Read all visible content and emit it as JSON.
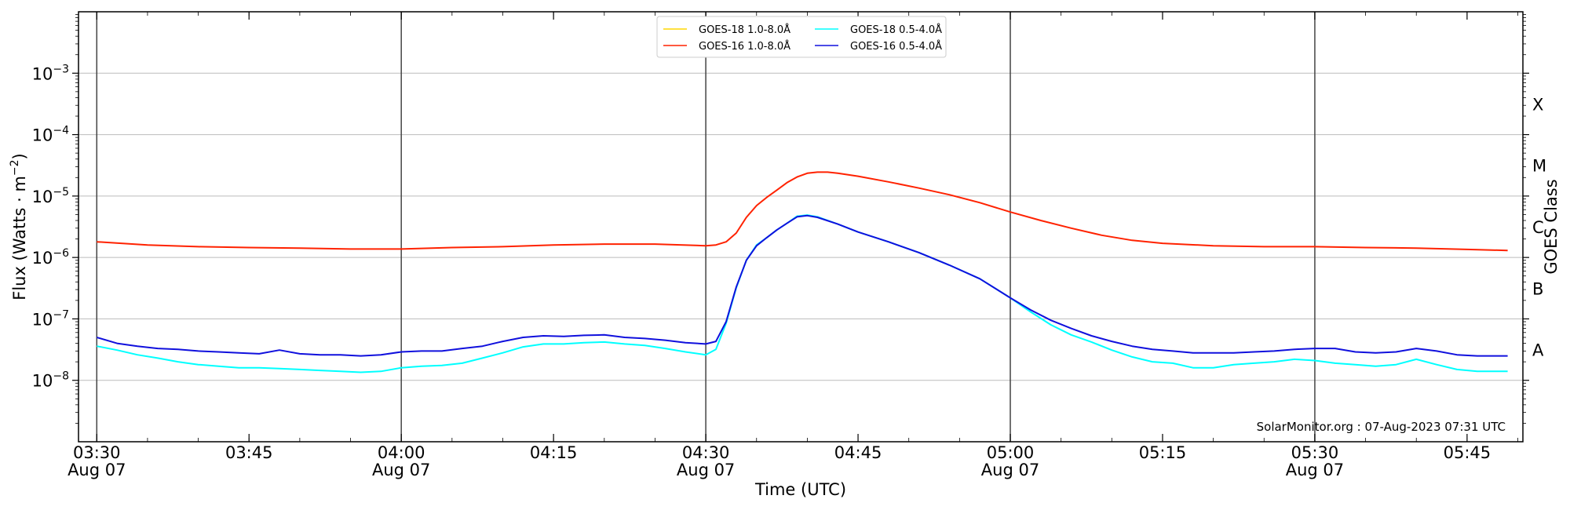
{
  "chart_data": {
    "type": "line",
    "title": "",
    "xlabel": "Time (UTC)",
    "ylabel_main": "Flux (Watts · m",
    "ylabel_exp": "−2",
    "ylabel_close": ")",
    "ylabel_right": "GOES Class",
    "y_scale": "log",
    "ylim": [
      1e-09,
      0.01
    ],
    "xlim_minutes": [
      "03:30",
      "05:50"
    ],
    "grid": "horizontal at decades",
    "legend_placement": "top-center",
    "x_ticks": [
      {
        "t": "03:30",
        "line1": "03:30",
        "line2": "Aug 07",
        "vline": true
      },
      {
        "t": "03:45",
        "line1": "03:45",
        "line2": "",
        "vline": false
      },
      {
        "t": "04:00",
        "line1": "04:00",
        "line2": "Aug 07",
        "vline": true
      },
      {
        "t": "04:15",
        "line1": "04:15",
        "line2": "",
        "vline": false
      },
      {
        "t": "04:30",
        "line1": "04:30",
        "line2": "Aug 07",
        "vline": true
      },
      {
        "t": "04:45",
        "line1": "04:45",
        "line2": "",
        "vline": false
      },
      {
        "t": "05:00",
        "line1": "05:00",
        "line2": "Aug 07",
        "vline": true
      },
      {
        "t": "05:15",
        "line1": "05:15",
        "line2": "",
        "vline": false
      },
      {
        "t": "05:30",
        "line1": "05:30",
        "line2": "Aug 07",
        "vline": true
      },
      {
        "t": "05:45",
        "line1": "05:45",
        "line2": "",
        "vline": false
      }
    ],
    "y_ticks": [
      {
        "value": 1e-08,
        "base": "10",
        "exp": "−8"
      },
      {
        "value": 1e-07,
        "base": "10",
        "exp": "−7"
      },
      {
        "value": 1e-06,
        "base": "10",
        "exp": "−6"
      },
      {
        "value": 1e-05,
        "base": "10",
        "exp": "−5"
      },
      {
        "value": 0.0001,
        "base": "10",
        "exp": "−4"
      },
      {
        "value": 0.001,
        "base": "10",
        "exp": "−3"
      }
    ],
    "goes_classes": [
      {
        "label": "A",
        "value": 1e-08
      },
      {
        "label": "B",
        "value": 1e-07
      },
      {
        "label": "C",
        "value": 1e-06
      },
      {
        "label": "M",
        "value": 1e-05
      },
      {
        "label": "X",
        "value": 0.0001
      }
    ],
    "series": [
      {
        "name": "GOES-18 1.0-8.0Å",
        "color": "#FFD700",
        "points": []
      },
      {
        "name": "GOES-16 1.0-8.0Å",
        "color": "#FF2200",
        "points": [
          [
            "03:30",
            1.8e-06
          ],
          [
            "03:35",
            1.6e-06
          ],
          [
            "03:40",
            1.5e-06
          ],
          [
            "03:45",
            1.45e-06
          ],
          [
            "03:50",
            1.42e-06
          ],
          [
            "03:55",
            1.37e-06
          ],
          [
            "04:00",
            1.37e-06
          ],
          [
            "04:05",
            1.45e-06
          ],
          [
            "04:10",
            1.5e-06
          ],
          [
            "04:15",
            1.6e-06
          ],
          [
            "04:20",
            1.65e-06
          ],
          [
            "04:25",
            1.65e-06
          ],
          [
            "04:30",
            1.55e-06
          ],
          [
            "04:31",
            1.6e-06
          ],
          [
            "04:32",
            1.8e-06
          ],
          [
            "04:33",
            2.5e-06
          ],
          [
            "04:34",
            4.5e-06
          ],
          [
            "04:35",
            7e-06
          ],
          [
            "04:36",
            9.5e-06
          ],
          [
            "04:37",
            1.25e-05
          ],
          [
            "04:38",
            1.65e-05
          ],
          [
            "04:39",
            2.05e-05
          ],
          [
            "04:40",
            2.35e-05
          ],
          [
            "04:41",
            2.45e-05
          ],
          [
            "04:42",
            2.45e-05
          ],
          [
            "04:43",
            2.35e-05
          ],
          [
            "04:45",
            2.1e-05
          ],
          [
            "04:48",
            1.7e-05
          ],
          [
            "04:51",
            1.35e-05
          ],
          [
            "04:54",
            1.05e-05
          ],
          [
            "04:57",
            7.8e-06
          ],
          [
            "05:00",
            5.5e-06
          ],
          [
            "05:03",
            4e-06
          ],
          [
            "05:06",
            3e-06
          ],
          [
            "05:09",
            2.3e-06
          ],
          [
            "05:12",
            1.9e-06
          ],
          [
            "05:15",
            1.7e-06
          ],
          [
            "05:20",
            1.55e-06
          ],
          [
            "05:25",
            1.5e-06
          ],
          [
            "05:30",
            1.5e-06
          ],
          [
            "05:35",
            1.45e-06
          ],
          [
            "05:40",
            1.42e-06
          ],
          [
            "05:45",
            1.35e-06
          ],
          [
            "05:49",
            1.3e-06
          ]
        ]
      },
      {
        "name": "GOES-18 0.5-4.0Å",
        "color": "#00FFFF",
        "points": [
          [
            "03:30",
            3.6e-08
          ],
          [
            "03:32",
            3.1e-08
          ],
          [
            "03:34",
            2.6e-08
          ],
          [
            "03:36",
            2.3e-08
          ],
          [
            "03:38",
            2e-08
          ],
          [
            "03:40",
            1.8e-08
          ],
          [
            "03:42",
            1.7e-08
          ],
          [
            "03:44",
            1.6e-08
          ],
          [
            "03:46",
            1.6e-08
          ],
          [
            "03:48",
            1.55e-08
          ],
          [
            "03:50",
            1.5e-08
          ],
          [
            "03:52",
            1.45e-08
          ],
          [
            "03:54",
            1.4e-08
          ],
          [
            "03:56",
            1.35e-08
          ],
          [
            "03:58",
            1.4e-08
          ],
          [
            "04:00",
            1.6e-08
          ],
          [
            "04:02",
            1.7e-08
          ],
          [
            "04:04",
            1.75e-08
          ],
          [
            "04:06",
            1.9e-08
          ],
          [
            "04:08",
            2.3e-08
          ],
          [
            "04:10",
            2.8e-08
          ],
          [
            "04:12",
            3.5e-08
          ],
          [
            "04:14",
            3.9e-08
          ],
          [
            "04:16",
            3.9e-08
          ],
          [
            "04:18",
            4.1e-08
          ],
          [
            "04:20",
            4.2e-08
          ],
          [
            "04:22",
            3.9e-08
          ],
          [
            "04:24",
            3.7e-08
          ],
          [
            "04:26",
            3.3e-08
          ],
          [
            "04:28",
            2.9e-08
          ],
          [
            "04:30",
            2.6e-08
          ],
          [
            "04:31",
            3.2e-08
          ],
          [
            "04:32",
            8.5e-08
          ],
          [
            "04:33",
            3.2e-07
          ],
          [
            "04:34",
            9e-07
          ],
          [
            "04:35",
            1.6e-06
          ],
          [
            "04:36",
            2.1e-06
          ],
          [
            "04:37",
            2.8e-06
          ],
          [
            "04:38",
            3.6e-06
          ],
          [
            "04:39",
            4.7e-06
          ],
          [
            "04:40",
            4.9e-06
          ],
          [
            "04:41",
            4.6e-06
          ],
          [
            "04:43",
            3.5e-06
          ],
          [
            "04:45",
            2.6e-06
          ],
          [
            "04:48",
            1.8e-06
          ],
          [
            "04:51",
            1.2e-06
          ],
          [
            "04:54",
            7.5e-07
          ],
          [
            "04:57",
            4.5e-07
          ],
          [
            "05:00",
            2.2e-07
          ],
          [
            "05:02",
            1.3e-07
          ],
          [
            "05:04",
            8e-08
          ],
          [
            "05:06",
            5.5e-08
          ],
          [
            "05:08",
            4.2e-08
          ],
          [
            "05:10",
            3.1e-08
          ],
          [
            "05:12",
            2.4e-08
          ],
          [
            "05:14",
            2e-08
          ],
          [
            "05:16",
            1.9e-08
          ],
          [
            "05:18",
            1.6e-08
          ],
          [
            "05:20",
            1.6e-08
          ],
          [
            "05:22",
            1.8e-08
          ],
          [
            "05:24",
            1.9e-08
          ],
          [
            "05:26",
            2e-08
          ],
          [
            "05:28",
            2.2e-08
          ],
          [
            "05:30",
            2.1e-08
          ],
          [
            "05:32",
            1.9e-08
          ],
          [
            "05:34",
            1.8e-08
          ],
          [
            "05:36",
            1.7e-08
          ],
          [
            "05:38",
            1.8e-08
          ],
          [
            "05:40",
            2.2e-08
          ],
          [
            "05:42",
            1.8e-08
          ],
          [
            "05:44",
            1.5e-08
          ],
          [
            "05:46",
            1.4e-08
          ],
          [
            "05:49",
            1.4e-08
          ]
        ]
      },
      {
        "name": "GOES-16 0.5-4.0Å",
        "color": "#1010DD",
        "points": [
          [
            "03:30",
            5e-08
          ],
          [
            "03:32",
            4e-08
          ],
          [
            "03:34",
            3.6e-08
          ],
          [
            "03:36",
            3.3e-08
          ],
          [
            "03:38",
            3.2e-08
          ],
          [
            "03:40",
            3e-08
          ],
          [
            "03:42",
            2.9e-08
          ],
          [
            "03:44",
            2.8e-08
          ],
          [
            "03:46",
            2.7e-08
          ],
          [
            "03:48",
            3.1e-08
          ],
          [
            "03:50",
            2.7e-08
          ],
          [
            "03:52",
            2.6e-08
          ],
          [
            "03:54",
            2.6e-08
          ],
          [
            "03:56",
            2.5e-08
          ],
          [
            "03:58",
            2.6e-08
          ],
          [
            "04:00",
            2.9e-08
          ],
          [
            "04:02",
            3e-08
          ],
          [
            "04:04",
            3e-08
          ],
          [
            "04:06",
            3.3e-08
          ],
          [
            "04:08",
            3.6e-08
          ],
          [
            "04:10",
            4.3e-08
          ],
          [
            "04:12",
            5e-08
          ],
          [
            "04:14",
            5.3e-08
          ],
          [
            "04:16",
            5.2e-08
          ],
          [
            "04:18",
            5.4e-08
          ],
          [
            "04:20",
            5.5e-08
          ],
          [
            "04:22",
            5e-08
          ],
          [
            "04:24",
            4.8e-08
          ],
          [
            "04:26",
            4.5e-08
          ],
          [
            "04:28",
            4.1e-08
          ],
          [
            "04:30",
            3.9e-08
          ],
          [
            "04:31",
            4.3e-08
          ],
          [
            "04:32",
            9e-08
          ],
          [
            "04:33",
            3.3e-07
          ],
          [
            "04:34",
            9e-07
          ],
          [
            "04:35",
            1.55e-06
          ],
          [
            "04:36",
            2.1e-06
          ],
          [
            "04:37",
            2.8e-06
          ],
          [
            "04:38",
            3.6e-06
          ],
          [
            "04:39",
            4.6e-06
          ],
          [
            "04:40",
            4.8e-06
          ],
          [
            "04:41",
            4.5e-06
          ],
          [
            "04:43",
            3.5e-06
          ],
          [
            "04:45",
            2.6e-06
          ],
          [
            "04:48",
            1.8e-06
          ],
          [
            "04:51",
            1.2e-06
          ],
          [
            "04:54",
            7.5e-07
          ],
          [
            "04:57",
            4.5e-07
          ],
          [
            "05:00",
            2.2e-07
          ],
          [
            "05:02",
            1.4e-07
          ],
          [
            "05:04",
            9.5e-08
          ],
          [
            "05:06",
            7e-08
          ],
          [
            "05:08",
            5.3e-08
          ],
          [
            "05:10",
            4.3e-08
          ],
          [
            "05:12",
            3.6e-08
          ],
          [
            "05:14",
            3.2e-08
          ],
          [
            "05:16",
            3e-08
          ],
          [
            "05:18",
            2.8e-08
          ],
          [
            "05:20",
            2.8e-08
          ],
          [
            "05:22",
            2.8e-08
          ],
          [
            "05:24",
            2.9e-08
          ],
          [
            "05:26",
            3e-08
          ],
          [
            "05:28",
            3.2e-08
          ],
          [
            "05:30",
            3.3e-08
          ],
          [
            "05:32",
            3.3e-08
          ],
          [
            "05:34",
            2.9e-08
          ],
          [
            "05:36",
            2.8e-08
          ],
          [
            "05:38",
            2.9e-08
          ],
          [
            "05:40",
            3.3e-08
          ],
          [
            "05:42",
            3e-08
          ],
          [
            "05:44",
            2.6e-08
          ],
          [
            "05:46",
            2.5e-08
          ],
          [
            "05:49",
            2.5e-08
          ]
        ]
      }
    ],
    "annotation": "SolarMonitor.org : 07-Aug-2023 07:31 UTC"
  }
}
